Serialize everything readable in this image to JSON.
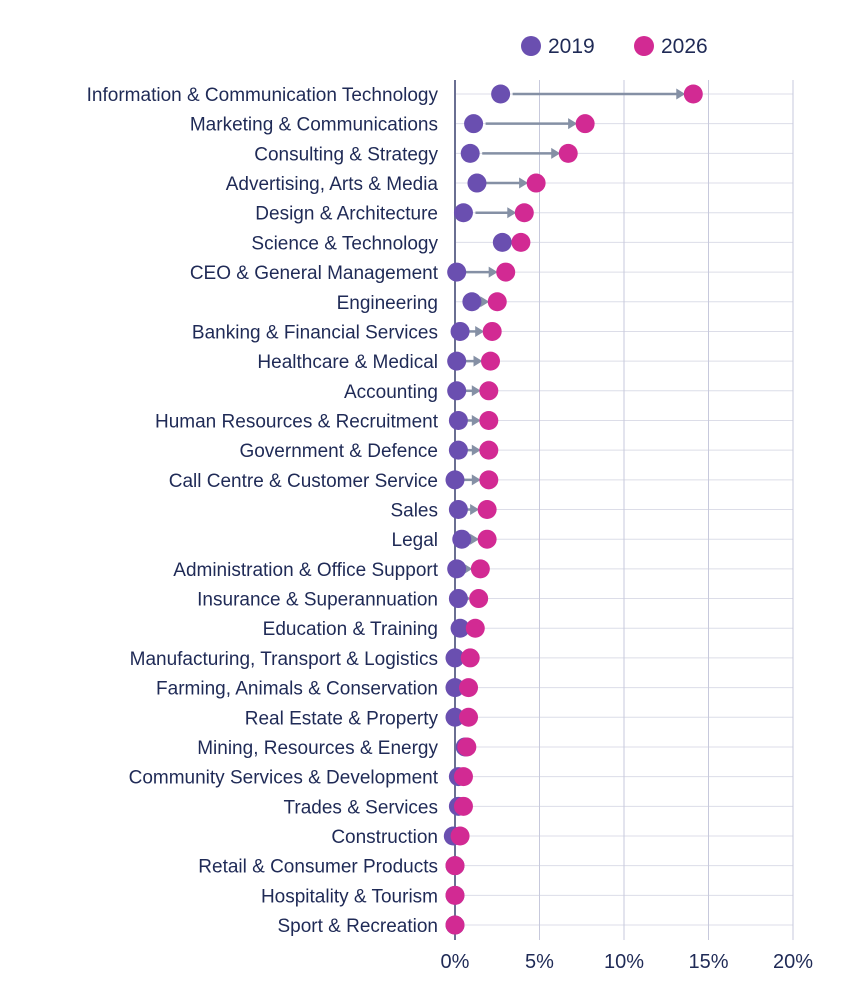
{
  "chart_data": {
    "type": "dumbbell",
    "x_ticks": [
      "0%",
      "5%",
      "10%",
      "15%",
      "20%"
    ],
    "xlim": [
      0,
      20
    ],
    "grid": true,
    "legend_position": "top-right",
    "colors": {
      "series_2019": "#6a4fb0",
      "series_2026": "#d22a93",
      "arrow": "#8590a5",
      "text": "#1f2a56"
    },
    "categories": [
      "Information & Communication Technology",
      "Marketing & Communications",
      "Consulting & Strategy",
      "Advertising, Arts & Media",
      "Design & Architecture",
      "Science & Technology",
      "CEO & General Management",
      "Engineering",
      "Banking & Financial Services",
      "Healthcare & Medical",
      "Accounting",
      "Human Resources & Recruitment",
      "Government & Defence",
      "Call Centre & Customer Service",
      "Sales",
      "Legal",
      "Administration & Office Support",
      "Insurance & Superannuation",
      "Education & Training",
      "Manufacturing, Transport & Logistics",
      "Farming, Animals & Conservation",
      "Real Estate & Property",
      "Mining, Resources & Energy",
      "Community Services & Development",
      "Trades & Services",
      "Construction",
      "Retail & Consumer Products",
      "Hospitality & Tourism",
      "Sport & Recreation"
    ],
    "series": [
      {
        "name": "2019",
        "values": [
          2.7,
          1.1,
          0.9,
          1.3,
          0.5,
          2.8,
          0.1,
          1.0,
          0.3,
          0.1,
          0.1,
          0.2,
          0.2,
          0.0,
          0.2,
          0.4,
          0.1,
          0.2,
          0.3,
          0.0,
          0.0,
          0.0,
          0.6,
          0.2,
          0.2,
          -0.1,
          0.0,
          0.0,
          0.0
        ]
      },
      {
        "name": "2026",
        "values": [
          14.1,
          7.7,
          6.7,
          4.8,
          4.1,
          3.9,
          3.0,
          2.5,
          2.2,
          2.1,
          2.0,
          2.0,
          2.0,
          2.0,
          1.9,
          1.9,
          1.5,
          1.4,
          1.2,
          0.9,
          0.8,
          0.8,
          0.7,
          0.5,
          0.5,
          0.3,
          0.0,
          0.0,
          0.0
        ]
      }
    ]
  }
}
